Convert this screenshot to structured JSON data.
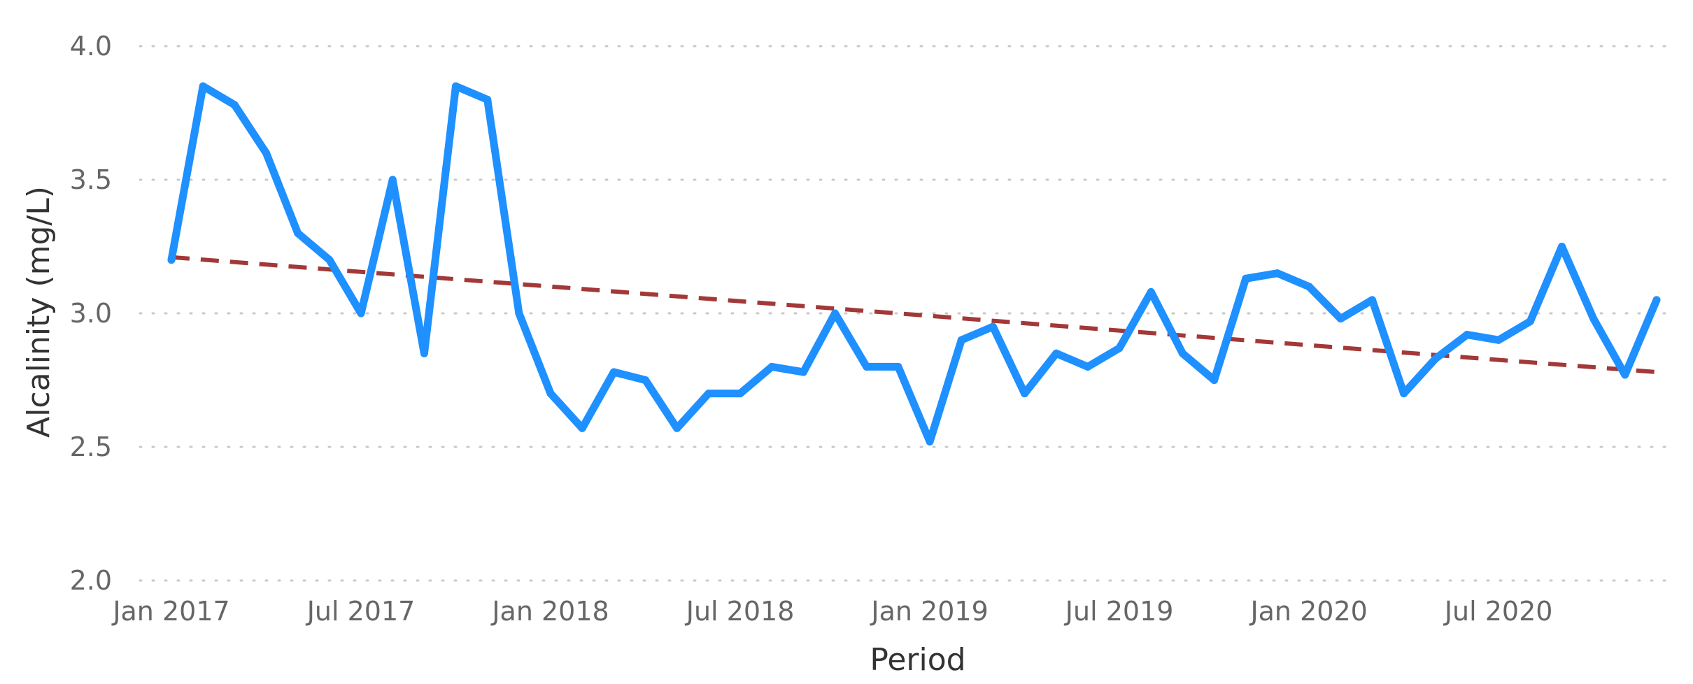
{
  "chart_data": {
    "type": "line",
    "xlabel": "Period",
    "ylabel": "Alcalinity (mg/L)",
    "ylim": [
      2.0,
      4.0
    ],
    "y_ticks": [
      "2.0",
      "2.5",
      "3.0",
      "3.5",
      "4.0"
    ],
    "x_ticks": [
      {
        "label": "Jan 2017",
        "x": "2017-01"
      },
      {
        "label": "Jul 2017",
        "x": "2017-07"
      },
      {
        "label": "Jan 2018",
        "x": "2018-01"
      },
      {
        "label": "Jul 2018",
        "x": "2018-07"
      },
      {
        "label": "Jan 2019",
        "x": "2019-01"
      },
      {
        "label": "Jul 2019",
        "x": "2019-07"
      },
      {
        "label": "Jan 2020",
        "x": "2020-01"
      },
      {
        "label": "Jul 2020",
        "x": "2020-07"
      }
    ],
    "grid": "horizontal dotted",
    "series": [
      {
        "color": "#1e90ff",
        "x": [
          "2017-01",
          "2017-02",
          "2017-03",
          "2017-04",
          "2017-05",
          "2017-06",
          "2017-07",
          "2017-08",
          "2017-09",
          "2017-10",
          "2017-11",
          "2017-12",
          "2018-01",
          "2018-02",
          "2018-03",
          "2018-04",
          "2018-05",
          "2018-06",
          "2018-07",
          "2018-08",
          "2018-09",
          "2018-10",
          "2018-11",
          "2018-12",
          "2019-01",
          "2019-02",
          "2019-03",
          "2019-04",
          "2019-05",
          "2019-06",
          "2019-07",
          "2019-08",
          "2019-09",
          "2019-10",
          "2019-11",
          "2019-12",
          "2020-01",
          "2020-02",
          "2020-03",
          "2020-04",
          "2020-05",
          "2020-06",
          "2020-07",
          "2020-08",
          "2020-09",
          "2020-10",
          "2020-11",
          "2020-12"
        ],
        "values": [
          3.2,
          3.85,
          3.78,
          3.6,
          3.3,
          3.2,
          3.0,
          3.5,
          2.85,
          3.85,
          3.8,
          3.0,
          2.7,
          2.57,
          2.78,
          2.75,
          2.57,
          2.7,
          2.7,
          2.8,
          2.78,
          3.0,
          2.8,
          2.8,
          2.52,
          2.9,
          2.95,
          2.7,
          2.85,
          2.8,
          2.87,
          3.08,
          2.85,
          2.75,
          3.13,
          3.15,
          3.1,
          2.98,
          3.05,
          2.7,
          2.83,
          2.92,
          2.9,
          2.97,
          3.25,
          2.98,
          2.77,
          3.05
        ]
      }
    ],
    "trend_line": {
      "color": "#a33838",
      "style": "dashed",
      "x": [
        "2017-01",
        "2020-12"
      ],
      "values": [
        3.21,
        2.78
      ]
    }
  }
}
